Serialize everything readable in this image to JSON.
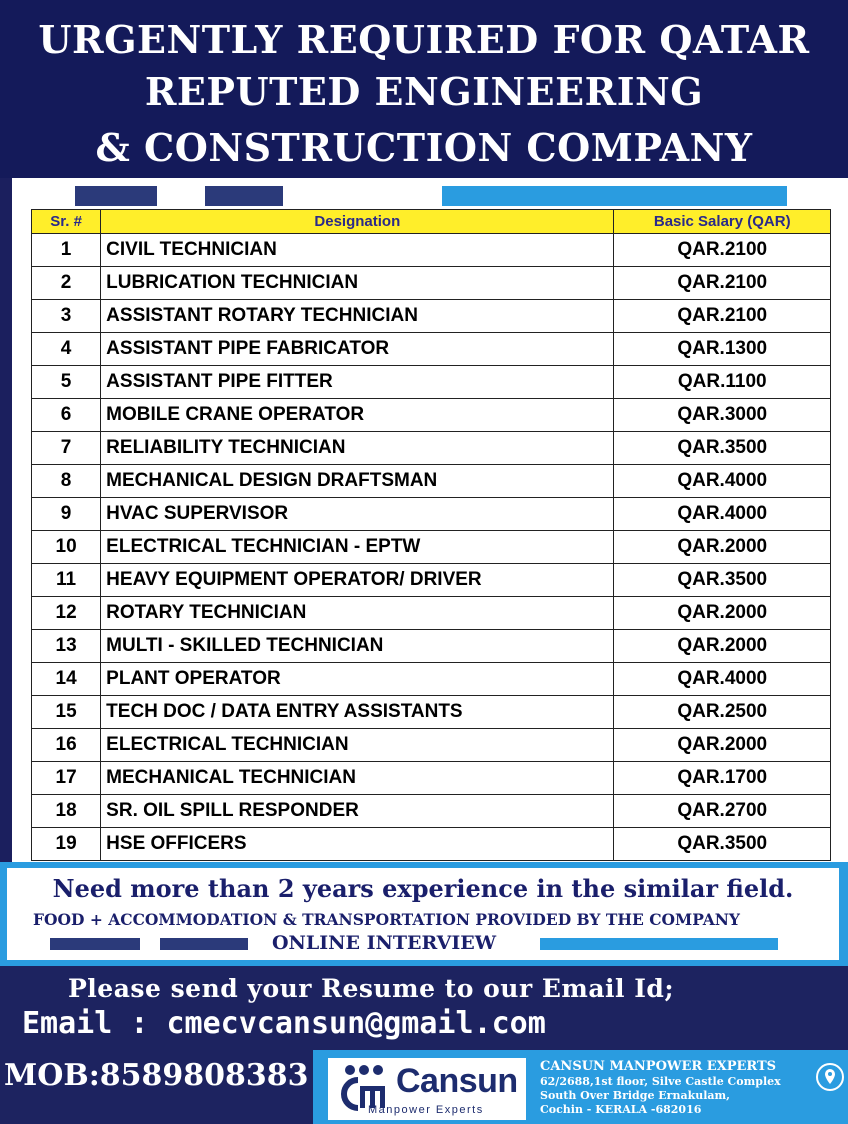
{
  "header": {
    "line1": "URGENTLY REQUIRED FOR QATAR",
    "line2": "REPUTED ENGINEERING",
    "line3": "& CONSTRUCTION COMPANY"
  },
  "table": {
    "columns": [
      "Sr. #",
      "Designation",
      "Basic Salary (QAR)"
    ],
    "rows": [
      {
        "sr": "1",
        "designation": "CIVIL TECHNICIAN",
        "salary": "QAR.2100"
      },
      {
        "sr": "2",
        "designation": "LUBRICATION TECHNICIAN",
        "salary": "QAR.2100"
      },
      {
        "sr": "3",
        "designation": "ASSISTANT ROTARY TECHNICIAN",
        "salary": "QAR.2100"
      },
      {
        "sr": "4",
        "designation": "ASSISTANT PIPE FABRICATOR",
        "salary": "QAR.1300"
      },
      {
        "sr": "5",
        "designation": "ASSISTANT PIPE FITTER",
        "salary": "QAR.1100"
      },
      {
        "sr": "6",
        "designation": "MOBILE CRANE OPERATOR",
        "salary": "QAR.3000"
      },
      {
        "sr": "7",
        "designation": "RELIABILITY TECHNICIAN",
        "salary": "QAR.3500"
      },
      {
        "sr": "8",
        "designation": "MECHANICAL DESIGN DRAFTSMAN",
        "salary": "QAR.4000"
      },
      {
        "sr": "9",
        "designation": "HVAC SUPERVISOR",
        "salary": "QAR.4000"
      },
      {
        "sr": "10",
        "designation": "ELECTRICAL TECHNICIAN - EPTW",
        "salary": "QAR.2000"
      },
      {
        "sr": "11",
        "designation": "HEAVY EQUIPMENT OPERATOR/ DRIVER",
        "salary": "QAR.3500"
      },
      {
        "sr": "12",
        "designation": "ROTARY TECHNICIAN",
        "salary": "QAR.2000"
      },
      {
        "sr": "13",
        "designation": "MULTI - SKILLED TECHNICIAN",
        "salary": "QAR.2000"
      },
      {
        "sr": "14",
        "designation": "PLANT OPERATOR",
        "salary": "QAR.4000"
      },
      {
        "sr": "15",
        "designation": "TECH DOC / DATA ENTRY ASSISTANTS",
        "salary": "QAR.2500"
      },
      {
        "sr": "16",
        "designation": "ELECTRICAL TECHNICIAN",
        "salary": "QAR.2000"
      },
      {
        "sr": "17",
        "designation": "MECHANICAL TECHNICIAN",
        "salary": "QAR.1700"
      },
      {
        "sr": "18",
        "designation": "SR. OIL SPILL RESPONDER",
        "salary": "QAR.2700"
      },
      {
        "sr": "19",
        "designation": "HSE OFFICERS",
        "salary": "QAR.3500"
      }
    ]
  },
  "info": {
    "experience": "Need more than 2 years experience in the similar field.",
    "benefits": "FOOD + ACCOMMODATION & TRANSPORTATION PROVIDED BY THE COMPANY",
    "interview": "ONLINE INTERVIEW"
  },
  "contact": {
    "resume": "Please send your Resume to our Email Id;",
    "email": "Email : cmecvcansun@gmail.com",
    "mobile": "MOB:8589808383"
  },
  "company": {
    "logo_name": "Cansun",
    "logo_tagline": "Manpower Experts",
    "name": "CANSUN MANPOWER  EXPERTS",
    "address_line1": "62/2688,1st floor, Silve Castle Complex",
    "address_line2": "South Over Bridge Ernakulam,",
    "address_line3": "Cochin - KERALA -682016"
  },
  "colors": {
    "navy": "#141a5a",
    "accent_blue": "#2a9ce0",
    "header_yellow": "#ffee2a"
  },
  "icons": [
    "cansun-logo-icon",
    "location-pin-icon"
  ]
}
